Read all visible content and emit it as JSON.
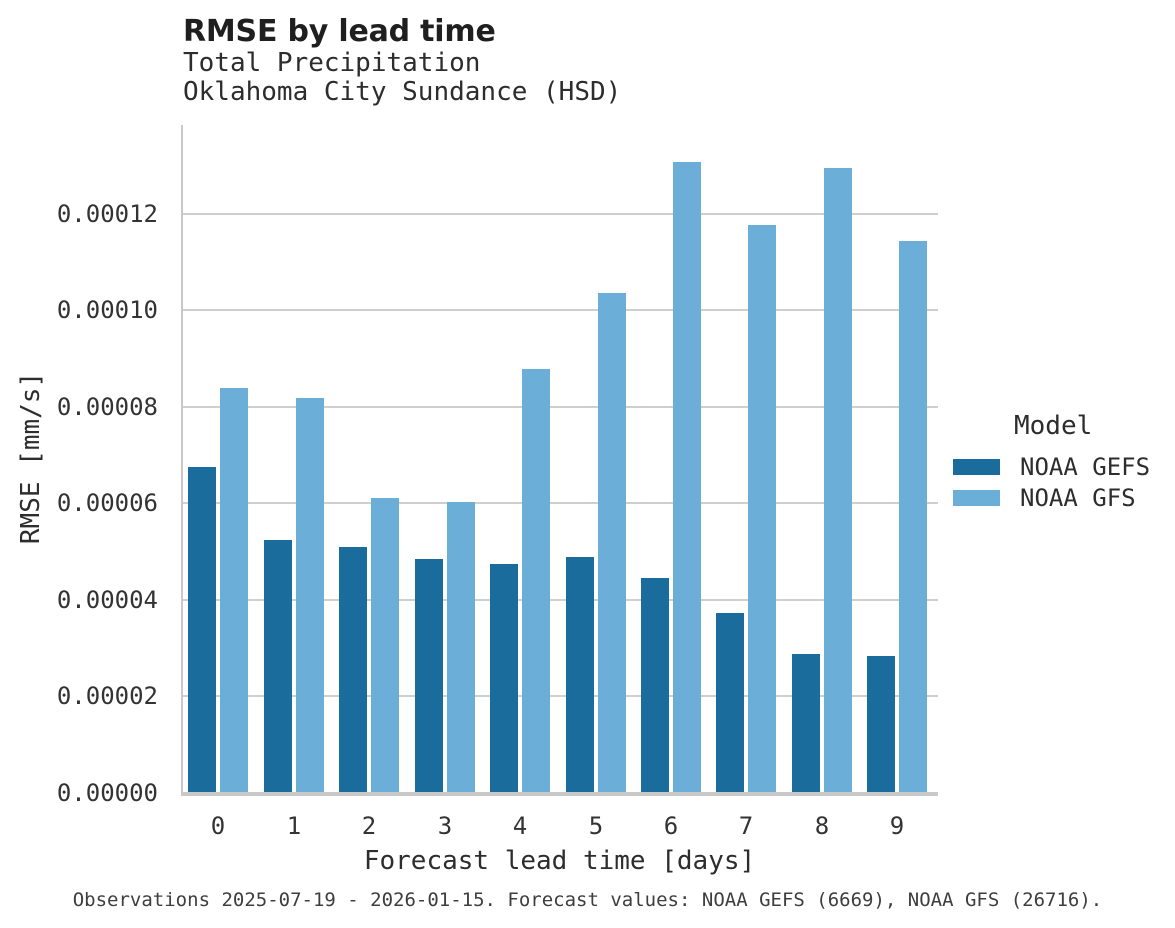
{
  "header": {
    "title": "RMSE by lead time",
    "subtitle_lines": [
      "Total Precipitation",
      "Oklahoma City Sundance (HSD)"
    ]
  },
  "footer": {
    "text": "Observations 2025-07-19 - 2026-01-15. Forecast values: NOAA GEFS (6669), NOAA GFS (26716)."
  },
  "chart_data": {
    "type": "bar",
    "title": "RMSE by lead time",
    "subtitle": [
      "Total Precipitation",
      "Oklahoma City Sundance (HSD)"
    ],
    "xlabel": "Forecast lead time [days]",
    "ylabel": "RMSE [mm/s]",
    "categories": [
      "0",
      "1",
      "2",
      "3",
      "4",
      "5",
      "6",
      "7",
      "8",
      "9"
    ],
    "series": [
      {
        "name": "NOAA GEFS",
        "color": "#1A6C9D",
        "values": [
          6.74e-05,
          5.23e-05,
          5.07e-05,
          4.84e-05,
          4.72e-05,
          4.88e-05,
          4.43e-05,
          3.72e-05,
          2.87e-05,
          2.81e-05
        ]
      },
      {
        "name": "NOAA GFS",
        "color": "#6BAFD8",
        "values": [
          8.38e-05,
          8.16e-05,
          6.1e-05,
          6.02e-05,
          8.78e-05,
          0.0001034,
          0.0001306,
          0.0001175,
          0.0001294,
          0.0001142
        ]
      }
    ],
    "ylim": [
      0,
      0.000138
    ],
    "yticks": [
      0,
      2e-05,
      4e-05,
      6e-05,
      8e-05,
      0.0001,
      0.00012
    ],
    "ytick_labels": [
      "0.00000",
      "0.00002",
      "0.00004",
      "0.00006",
      "0.00008",
      "0.00010",
      "0.00012"
    ],
    "grid": true,
    "legend_title": "Model",
    "legend_position": "right"
  },
  "style": {
    "grid_color": "#cfcfcf",
    "spine_color": "#c9c9c9",
    "tick_color": "#333333"
  }
}
